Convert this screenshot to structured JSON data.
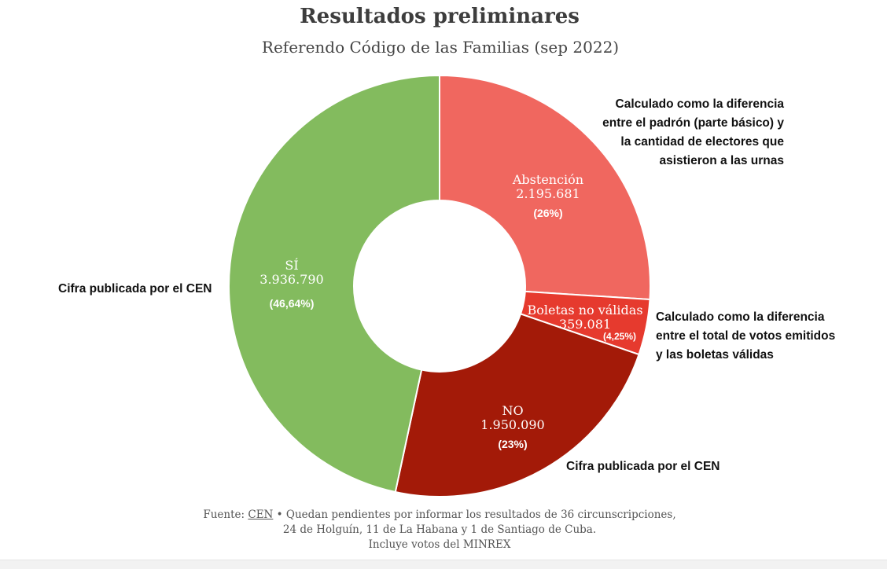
{
  "chart_data": {
    "type": "pie",
    "title": "Resultados preliminares",
    "subtitle": "Referendo Código de las Familias (sep 2022)",
    "slices": [
      {
        "label": "Abstención",
        "value_text": "2.195.681",
        "value": 2195681,
        "pct_text": "(26%)",
        "pct": 26,
        "color": "#f0675f"
      },
      {
        "label": "Boletas no válidas",
        "value_text": "359.081",
        "value": 359081,
        "pct_text": "(4,25%)",
        "pct": 4.25,
        "color": "#e63a2e"
      },
      {
        "label": "NO",
        "value_text": "1.950.090",
        "value": 1950090,
        "pct_text": "(23%)",
        "pct": 23,
        "color": "#a31a08"
      },
      {
        "label": "SÍ",
        "value_text": "3.936.790",
        "value": 3936790,
        "pct_text": "(46,64%)",
        "pct": 46.64,
        "color": "#83bb5e"
      }
    ],
    "start": "12 o'clock",
    "direction": "clockwise",
    "donut": true
  },
  "annotations": {
    "abstencion_note": [
      "Calculado como la diferencia",
      "entre el padrón (parte básico) y",
      "la cantidad de electores que",
      "asistieron a las urnas"
    ],
    "nulos_note": [
      "Calculado como la diferencia",
      "entre el total de votos emitidos",
      "y las boletas válidas"
    ],
    "si_note": "Cifra publicada por el CEN",
    "no_note": "Cifra publicada por el CEN"
  },
  "source": {
    "prefix": "Fuente: ",
    "link": "CEN",
    "line1_rest": " • Quedan pendientes por informar los resultados de 36 circunscripciones,",
    "line2": "24 de Holguín, 11 de La Habana y 1 de Santiago de Cuba.",
    "line3": "Incluye votos del MINREX"
  }
}
